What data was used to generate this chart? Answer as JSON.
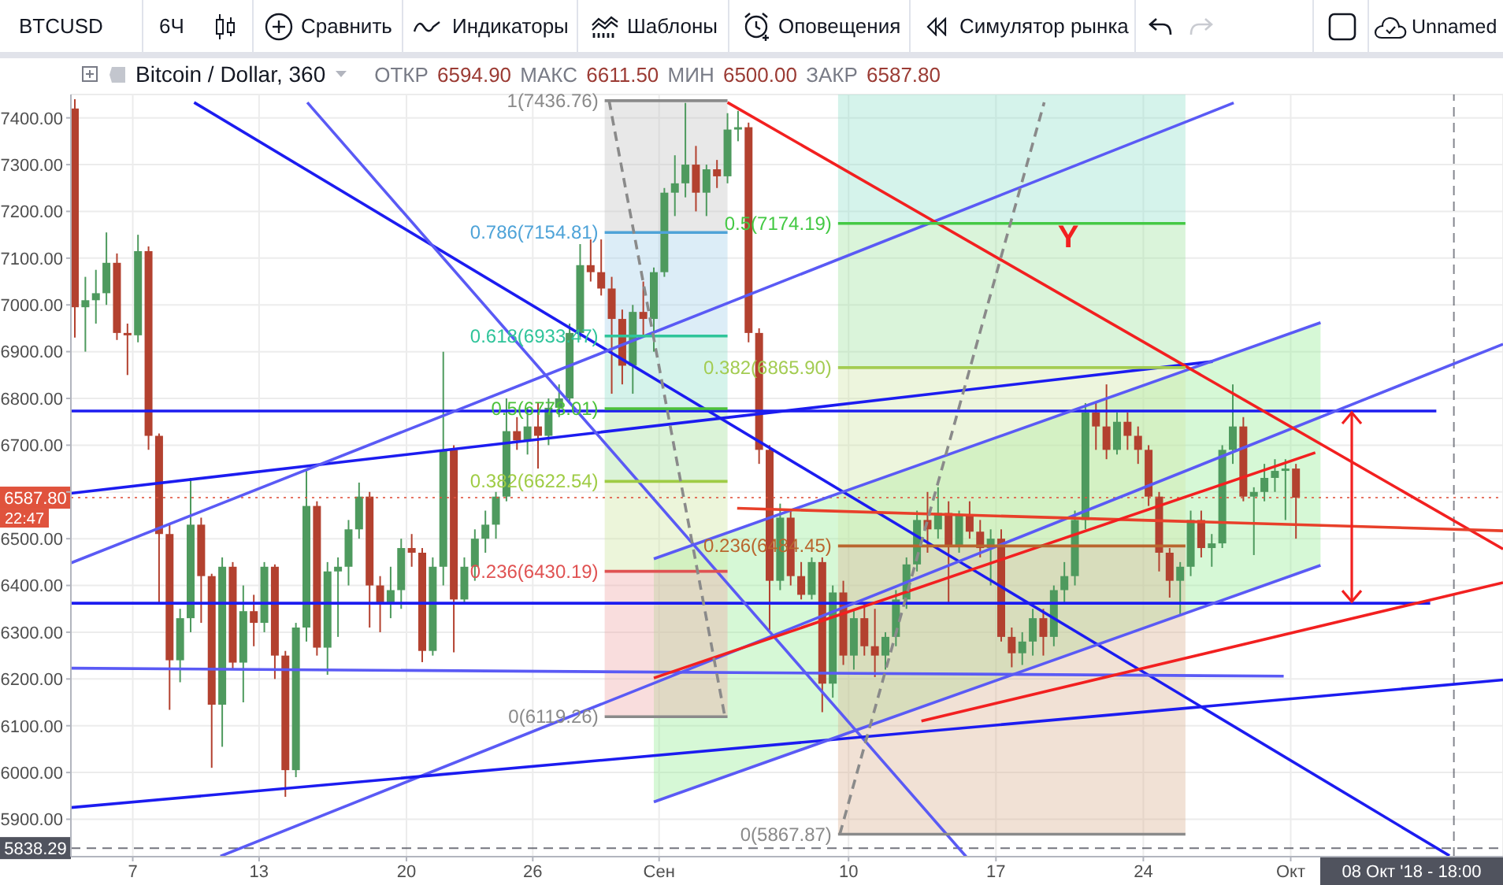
{
  "chart_data": {
    "type": "candlestick",
    "title": "Bitcoin / Dollar, 360",
    "subtitle": "ОТКР 6594.90 МАКС 6611.50 МИН 6500.00 ЗАКР 6587.80",
    "x": [
      "2018-08-04T06:00",
      "2018-08-04T18:00",
      "2018-08-05T06:00",
      "2018-08-05T18:00",
      "2018-08-06T06:00",
      "2018-08-06T18:00",
      "2018-08-07T06:00",
      "2018-08-07T18:00",
      "2018-08-08T06:00",
      "2018-08-08T18:00",
      "2018-08-09T06:00",
      "2018-08-09T18:00",
      "2018-08-10T06:00",
      "2018-08-10T18:00",
      "2018-08-11T06:00",
      "2018-08-11T18:00",
      "2018-08-12T06:00",
      "2018-08-12T18:00",
      "2018-08-13T06:00",
      "2018-08-13T18:00",
      "2018-08-14T06:00",
      "2018-08-14T18:00",
      "2018-08-15T06:00",
      "2018-08-15T18:00",
      "2018-08-16T06:00",
      "2018-08-16T18:00",
      "2018-08-17T06:00",
      "2018-08-17T18:00",
      "2018-08-18T06:00",
      "2018-08-18T18:00",
      "2018-08-19T06:00",
      "2018-08-19T18:00",
      "2018-08-20T06:00",
      "2018-08-20T18:00",
      "2018-08-21T06:00",
      "2018-08-21T18:00",
      "2018-08-22T06:00",
      "2018-08-22T18:00",
      "2018-08-23T06:00",
      "2018-08-23T18:00",
      "2018-08-24T06:00",
      "2018-08-24T18:00",
      "2018-08-25T06:00",
      "2018-08-25T18:00",
      "2018-08-26T06:00",
      "2018-08-26T18:00",
      "2018-08-27T06:00",
      "2018-08-27T18:00",
      "2018-08-28T06:00",
      "2018-08-28T18:00",
      "2018-08-29T06:00",
      "2018-08-29T18:00",
      "2018-08-30T06:00",
      "2018-08-30T18:00",
      "2018-08-31T06:00",
      "2018-08-31T18:00",
      "2018-09-01T06:00",
      "2018-09-01T18:00",
      "2018-09-02T06:00",
      "2018-09-02T18:00",
      "2018-09-03T06:00",
      "2018-09-03T18:00",
      "2018-09-04T06:00",
      "2018-09-04T18:00",
      "2018-09-05T06:00",
      "2018-09-05T18:00",
      "2018-09-06T06:00",
      "2018-09-06T18:00",
      "2018-09-07T06:00",
      "2018-09-07T18:00",
      "2018-09-08T06:00",
      "2018-09-08T18:00",
      "2018-09-09T06:00",
      "2018-09-09T18:00",
      "2018-09-10T06:00",
      "2018-09-10T18:00",
      "2018-09-11T06:00",
      "2018-09-11T18:00",
      "2018-09-12T06:00",
      "2018-09-12T18:00",
      "2018-09-13T06:00",
      "2018-09-13T18:00",
      "2018-09-14T06:00",
      "2018-09-14T18:00",
      "2018-09-15T06:00",
      "2018-09-15T18:00",
      "2018-09-16T06:00",
      "2018-09-16T18:00",
      "2018-09-17T06:00",
      "2018-09-17T18:00",
      "2018-09-18T06:00",
      "2018-09-18T18:00",
      "2018-09-19T06:00",
      "2018-09-19T18:00",
      "2018-09-20T06:00",
      "2018-09-20T18:00",
      "2018-09-21T06:00",
      "2018-09-21T18:00",
      "2018-09-22T06:00",
      "2018-09-22T18:00",
      "2018-09-23T06:00",
      "2018-09-23T18:00",
      "2018-09-24T06:00",
      "2018-09-24T18:00",
      "2018-09-25T06:00",
      "2018-09-25T18:00",
      "2018-09-26T06:00",
      "2018-09-26T18:00",
      "2018-09-27T06:00",
      "2018-09-27T18:00",
      "2018-09-28T06:00",
      "2018-09-28T18:00",
      "2018-09-29T06:00",
      "2018-09-29T18:00",
      "2018-09-30T06:00",
      "2018-09-30T18:00",
      "2018-10-01T06:00"
    ],
    "ohlc": [
      [
        7420,
        7440,
        6930,
        6995
      ],
      [
        6995,
        7060,
        6900,
        7010
      ],
      [
        7010,
        7075,
        6960,
        7025
      ],
      [
        7025,
        7155,
        7000,
        7090
      ],
      [
        7090,
        7110,
        6925,
        6940
      ],
      [
        6940,
        6960,
        6850,
        6935
      ],
      [
        6935,
        7150,
        6920,
        7115
      ],
      [
        7115,
        7125,
        6690,
        6720
      ],
      [
        6720,
        6725,
        6360,
        6510
      ],
      [
        6510,
        6530,
        6134,
        6240
      ],
      [
        6240,
        6350,
        6193,
        6330
      ],
      [
        6330,
        6630,
        6300,
        6530
      ],
      [
        6530,
        6545,
        6320,
        6420
      ],
      [
        6420,
        6425,
        6010,
        6145
      ],
      [
        6145,
        6460,
        6055,
        6440
      ],
      [
        6440,
        6450,
        6220,
        6235
      ],
      [
        6235,
        6400,
        6150,
        6345
      ],
      [
        6345,
        6380,
        6270,
        6320
      ],
      [
        6320,
        6450,
        6300,
        6440
      ],
      [
        6440,
        6445,
        6200,
        6250
      ],
      [
        6250,
        6260,
        5948,
        6005
      ],
      [
        6005,
        6320,
        5990,
        6310
      ],
      [
        6310,
        6650,
        6280,
        6570
      ],
      [
        6570,
        6580,
        6250,
        6267
      ],
      [
        6267,
        6450,
        6209,
        6430
      ],
      [
        6430,
        6460,
        6290,
        6440
      ],
      [
        6440,
        6540,
        6400,
        6520
      ],
      [
        6520,
        6620,
        6500,
        6590
      ],
      [
        6590,
        6600,
        6310,
        6400
      ],
      [
        6400,
        6420,
        6300,
        6360
      ],
      [
        6360,
        6440,
        6330,
        6390
      ],
      [
        6390,
        6500,
        6350,
        6480
      ],
      [
        6480,
        6510,
        6440,
        6470
      ],
      [
        6470,
        6480,
        6236,
        6260
      ],
      [
        6260,
        6460,
        6250,
        6440
      ],
      [
        6440,
        6900,
        6400,
        6690
      ],
      [
        6690,
        6700,
        6257,
        6370
      ],
      [
        6370,
        6460,
        6360,
        6440
      ],
      [
        6440,
        6520,
        6410,
        6500
      ],
      [
        6500,
        6560,
        6470,
        6530
      ],
      [
        6530,
        6600,
        6500,
        6590
      ],
      [
        6590,
        6800,
        6580,
        6730
      ],
      [
        6730,
        6760,
        6690,
        6710
      ],
      [
        6710,
        6780,
        6680,
        6740
      ],
      [
        6740,
        6790,
        6650,
        6720
      ],
      [
        6720,
        6800,
        6700,
        6780
      ],
      [
        6780,
        6830,
        6760,
        6800
      ],
      [
        6800,
        6960,
        6790,
        6940
      ],
      [
        6940,
        7130,
        6930,
        7085
      ],
      [
        7085,
        7140,
        7050,
        7070
      ],
      [
        7070,
        7140,
        7020,
        7035
      ],
      [
        7035,
        7060,
        6810,
        6970
      ],
      [
        6970,
        6990,
        6830,
        6870
      ],
      [
        6870,
        7000,
        6810,
        6985
      ],
      [
        6985,
        7050,
        6930,
        6970
      ],
      [
        6970,
        7080,
        6900,
        7070
      ],
      [
        7070,
        7250,
        7060,
        7240
      ],
      [
        7240,
        7320,
        7190,
        7260
      ],
      [
        7260,
        7432,
        7230,
        7300
      ],
      [
        7300,
        7340,
        7200,
        7240
      ],
      [
        7240,
        7300,
        7190,
        7290
      ],
      [
        7290,
        7310,
        7250,
        7275
      ],
      [
        7275,
        7410,
        7260,
        7375
      ],
      [
        7375,
        7415,
        7350,
        7380
      ],
      [
        7380,
        7390,
        6920,
        6940
      ],
      [
        6940,
        6950,
        6660,
        6690
      ],
      [
        6690,
        6700,
        6305,
        6410
      ],
      [
        6410,
        6575,
        6390,
        6545
      ],
      [
        6545,
        6560,
        6400,
        6420
      ],
      [
        6420,
        6450,
        6370,
        6380
      ],
      [
        6380,
        6460,
        6370,
        6450
      ],
      [
        6450,
        6460,
        6129,
        6190
      ],
      [
        6190,
        6400,
        6160,
        6385
      ],
      [
        6385,
        6410,
        6230,
        6250
      ],
      [
        6250,
        6350,
        6220,
        6330
      ],
      [
        6330,
        6360,
        6250,
        6270
      ],
      [
        6270,
        6350,
        6204,
        6250
      ],
      [
        6250,
        6300,
        6220,
        6290
      ],
      [
        6290,
        6390,
        6270,
        6370
      ],
      [
        6370,
        6460,
        6350,
        6445
      ],
      [
        6445,
        6560,
        6430,
        6540
      ],
      [
        6540,
        6600,
        6470,
        6520
      ],
      [
        6520,
        6610,
        6500,
        6555
      ],
      [
        6555,
        6580,
        6363,
        6485
      ],
      [
        6485,
        6560,
        6470,
        6550
      ],
      [
        6550,
        6580,
        6500,
        6515
      ],
      [
        6515,
        6540,
        6460,
        6480
      ],
      [
        6480,
        6520,
        6400,
        6500
      ],
      [
        6500,
        6520,
        6280,
        6290
      ],
      [
        6290,
        6310,
        6225,
        6255
      ],
      [
        6255,
        6300,
        6230,
        6280
      ],
      [
        6280,
        6350,
        6250,
        6330
      ],
      [
        6330,
        6350,
        6250,
        6290
      ],
      [
        6290,
        6400,
        6270,
        6390
      ],
      [
        6390,
        6450,
        6360,
        6420
      ],
      [
        6420,
        6560,
        6400,
        6540
      ],
      [
        6540,
        6790,
        6520,
        6770
      ],
      [
        6770,
        6790,
        6690,
        6740
      ],
      [
        6740,
        6830,
        6670,
        6690
      ],
      [
        6690,
        6770,
        6680,
        6750
      ],
      [
        6750,
        6770,
        6690,
        6720
      ],
      [
        6720,
        6740,
        6660,
        6690
      ],
      [
        6690,
        6700,
        6570,
        6590
      ],
      [
        6590,
        6600,
        6430,
        6470
      ],
      [
        6470,
        6480,
        6374,
        6410
      ],
      [
        6410,
        6450,
        6335,
        6440
      ],
      [
        6440,
        6560,
        6420,
        6540
      ],
      [
        6540,
        6560,
        6460,
        6480
      ],
      [
        6480,
        6510,
        6440,
        6490
      ],
      [
        6490,
        6700,
        6480,
        6690
      ],
      [
        6690,
        6830,
        6660,
        6740
      ],
      [
        6740,
        6760,
        6580,
        6590
      ],
      [
        6590,
        6610,
        6465,
        6600
      ],
      [
        6600,
        6660,
        6580,
        6630
      ],
      [
        6630,
        6670,
        6600,
        6645
      ],
      [
        6645,
        6670,
        6540,
        6650
      ],
      [
        6650,
        6660,
        6500,
        6587.8
      ]
    ],
    "colors": [
      "#b3412f",
      "#4e9a5e",
      "#4e9a5e",
      "#4e9a5e",
      "#b3412f",
      "#b3412f",
      "#4e9a5e",
      "#b3412f",
      "#b3412f",
      "#b3412f",
      "#4e9a5e",
      "#4e9a5e",
      "#b3412f",
      "#b3412f",
      "#4e9a5e",
      "#b3412f",
      "#4e9a5e",
      "#b3412f",
      "#4e9a5e",
      "#b3412f",
      "#b3412f",
      "#4e9a5e",
      "#4e9a5e",
      "#b3412f",
      "#4e9a5e",
      "#4e9a5e",
      "#4e9a5e",
      "#4e9a5e",
      "#b3412f",
      "#b3412f",
      "#4e9a5e",
      "#4e9a5e",
      "#b3412f",
      "#b3412f",
      "#4e9a5e",
      "#4e9a5e",
      "#b3412f",
      "#4e9a5e",
      "#4e9a5e",
      "#4e9a5e",
      "#4e9a5e",
      "#4e9a5e",
      "#b3412f",
      "#4e9a5e",
      "#b3412f",
      "#4e9a5e",
      "#4e9a5e",
      "#4e9a5e",
      "#4e9a5e",
      "#b3412f",
      "#b3412f",
      "#b3412f",
      "#b3412f",
      "#4e9a5e",
      "#b3412f",
      "#4e9a5e",
      "#4e9a5e",
      "#4e9a5e",
      "#4e9a5e",
      "#b3412f",
      "#4e9a5e",
      "#b3412f",
      "#4e9a5e",
      "#4e9a5e",
      "#b3412f",
      "#b3412f",
      "#b3412f",
      "#4e9a5e",
      "#b3412f",
      "#b3412f",
      "#4e9a5e",
      "#b3412f",
      "#4e9a5e",
      "#b3412f",
      "#4e9a5e",
      "#b3412f",
      "#b3412f",
      "#4e9a5e",
      "#4e9a5e",
      "#4e9a5e",
      "#4e9a5e",
      "#b3412f",
      "#4e9a5e",
      "#b3412f",
      "#4e9a5e",
      "#b3412f",
      "#b3412f",
      "#4e9a5e",
      "#b3412f",
      "#b3412f",
      "#4e9a5e",
      "#4e9a5e",
      "#b3412f",
      "#4e9a5e",
      "#4e9a5e",
      "#4e9a5e",
      "#4e9a5e",
      "#b3412f",
      "#b3412f",
      "#4e9a5e",
      "#b3412f",
      "#b3412f",
      "#b3412f",
      "#b3412f",
      "#b3412f",
      "#4e9a5e",
      "#4e9a5e",
      "#b3412f",
      "#4e9a5e",
      "#4e9a5e",
      "#4e9a5e",
      "#b3412f",
      "#4e9a5e",
      "#4e9a5e",
      "#4e9a5e",
      "#4e9a5e",
      "#b3412f"
    ],
    "series": [
      {
        "type": "line",
        "color": "#1c1cf0",
        "x": [
          "2018-08-04T01:30",
          "2018-10-07T22:00"
        ],
        "values": [
          6773,
          6773
        ]
      },
      {
        "type": "line",
        "color": "#1c1cf0",
        "x": [
          "2018-08-04T01:30",
          "2018-10-07T15:00"
        ],
        "values": [
          6362,
          6362
        ]
      },
      {
        "type": "line",
        "color": "#1c1cf0",
        "x": [
          "2018-08-04T01:30",
          "2018-09-27T07:00"
        ],
        "values": [
          6597,
          6879
        ]
      },
      {
        "type": "line",
        "color": "#1c1cf0",
        "x": [
          "2018-08-09T22:00",
          "2018-10-08T13:00"
        ],
        "values": [
          7433,
          5822
        ]
      },
      {
        "type": "line",
        "color": "#5a5af5",
        "x": [
          "2018-08-15T07:00",
          "2018-09-15T14:00"
        ],
        "values": [
          7433,
          5820
        ]
      },
      {
        "type": "line",
        "color": "#5a5af5",
        "x": [
          "2018-08-04T01:30",
          "2018-09-28T07:00"
        ],
        "values": [
          6448,
          7432
        ]
      },
      {
        "type": "line",
        "color": "#5a5af5",
        "x": [
          "2018-08-11T04:00",
          "2018-10-11T02:00"
        ],
        "values": [
          5821,
          6916
        ]
      },
      {
        "type": "line",
        "color": "#1c1cf0",
        "x": [
          "2018-08-04T01:30",
          "2018-10-11T02:00"
        ],
        "values": [
          5925,
          6198
        ]
      },
      {
        "type": "line",
        "color": "#5a5af5",
        "x": [
          "2018-08-04T01:30",
          "2018-09-30T16:00"
        ],
        "values": [
          6223,
          6206
        ]
      },
      {
        "type": "area",
        "color": "#33dd33",
        "x": [
          "2018-08-31T18:00",
          "2018-10-02T10:00"
        ],
        "values": [
          null,
          null
        ],
        "lower": [
          5937,
          6443
        ],
        "upper": [
          6457,
          6962
        ]
      },
      {
        "type": "line",
        "color": "#5a5af5",
        "x": [
          "2018-08-31T18:00",
          "2018-10-02T10:00"
        ],
        "values": [
          6457,
          6962
        ]
      },
      {
        "type": "line",
        "color": "#5a5af5",
        "x": [
          "2018-08-31T18:00",
          "2018-10-02T10:00"
        ],
        "values": [
          5937,
          6443
        ]
      },
      {
        "type": "line",
        "color": "#f22020",
        "x": [
          "2018-09-04T06:00",
          "2018-10-11T02:00"
        ],
        "values": [
          7433,
          6478
        ]
      },
      {
        "type": "line",
        "color": "#e8402a",
        "x": [
          "2018-09-04T17:00",
          "2018-10-11T02:00"
        ],
        "values": [
          6565,
          6517
        ]
      },
      {
        "type": "line",
        "color": "#f22020",
        "x": [
          "2018-08-31T18:00",
          "2018-10-02T04:00"
        ],
        "values": [
          6202,
          6684
        ]
      },
      {
        "type": "line",
        "color": "#f22020",
        "x": [
          "2018-09-13T11:00",
          "2018-10-11T02:00"
        ],
        "values": [
          6110,
          6406
        ]
      },
      {
        "type": "line",
        "name": "1(7436.76)",
        "color": "#8a8a8a",
        "x": [
          "2018-08-29T10:00",
          "2018-09-04T06:00"
        ],
        "values": [
          7436.76,
          7436.76
        ],
        "lower": [
          7154.81,
          7154.81
        ],
        "upper": [
          7436.76,
          7436.76
        ]
      },
      {
        "type": "line",
        "name": "0.786(7154.81)",
        "color": "#4ea3d8",
        "x": [
          "2018-08-29T10:00",
          "2018-09-04T06:00"
        ],
        "values": [
          7154.81,
          7154.81
        ],
        "lower": [
          6933.47,
          6933.47
        ],
        "upper": [
          7154.81,
          7154.81
        ]
      },
      {
        "type": "line",
        "name": "0.618(6933.47)",
        "color": "#2fc49a",
        "x": [
          "2018-08-29T10:00",
          "2018-09-04T06:00"
        ],
        "values": [
          6933.47,
          6933.47
        ],
        "lower": [
          6778.01,
          6778.01
        ],
        "upper": [
          6933.47,
          6933.47
        ]
      },
      {
        "type": "line",
        "name": "0.5(6778.01)",
        "color": "#4cc23a",
        "x": [
          "2018-08-29T10:00",
          "2018-09-04T06:00"
        ],
        "values": [
          6778.01,
          6778.01
        ],
        "lower": [
          6622.54,
          6622.54
        ],
        "upper": [
          6778.01,
          6778.01
        ]
      },
      {
        "type": "line",
        "name": "0.382(6622.54)",
        "color": "#9fcc45",
        "x": [
          "2018-08-29T10:00",
          "2018-09-04T06:00"
        ],
        "values": [
          6622.54,
          6622.54
        ],
        "lower": [
          6430.19,
          6430.19
        ],
        "upper": [
          6622.54,
          6622.54
        ]
      },
      {
        "type": "line",
        "name": "0.236(6430.19)",
        "color": "#e05252",
        "x": [
          "2018-08-29T10:00",
          "2018-09-04T06:00"
        ],
        "values": [
          6430.19,
          6430.19
        ],
        "lower": [
          6119.26,
          6119.26
        ],
        "upper": [
          6430.19,
          6430.19
        ]
      },
      {
        "type": "line",
        "name": "0(6119.26)",
        "color": "#8a8a8a",
        "x": [
          "2018-08-29T10:00",
          "2018-09-04T06:00"
        ],
        "values": [
          6119.26,
          6119.26
        ]
      },
      {
        "type": "line",
        "color": "#8a8a8a",
        "line_style": "dashed",
        "x": [
          "2018-08-29T15:00",
          "2018-09-04T03:00"
        ],
        "values": [
          7436.76,
          6119.26
        ]
      },
      {
        "type": "line",
        "color": "#2fc49a",
        "x": [
          "2018-09-09T12:00",
          "2018-09-26T00:00"
        ],
        "values": [
          null,
          null
        ],
        "lower": [
          7174.19,
          7174.19
        ],
        "upper": [
          7450,
          7450
        ]
      },
      {
        "type": "line",
        "name": "0.5(7174.19)",
        "color": "#44c944",
        "x": [
          "2018-09-09T12:00",
          "2018-09-26T00:00"
        ],
        "values": [
          7174.19,
          7174.19
        ],
        "lower": [
          6865.9,
          6865.9
        ],
        "upper": [
          7174.19,
          7174.19
        ]
      },
      {
        "type": "line",
        "name": "0.382(6865.90)",
        "color": "#a3cc52",
        "x": [
          "2018-09-09T12:00",
          "2018-09-26T00:00"
        ],
        "values": [
          6865.9,
          6865.9
        ],
        "lower": [
          6484.45,
          6484.45
        ],
        "upper": [
          6865.9,
          6865.9
        ]
      },
      {
        "type": "line",
        "name": "0.236(6484.45)",
        "color": "#b9662e",
        "x": [
          "2018-09-09T12:00",
          "2018-09-26T00:00"
        ],
        "values": [
          6484.45,
          6484.45
        ],
        "lower": [
          5867.87,
          5867.87
        ],
        "upper": [
          6484.45,
          6484.45
        ]
      },
      {
        "type": "line",
        "name": "0(5867.87)",
        "color": "#8a8a8a",
        "x": [
          "2018-09-09T12:00",
          "2018-09-26T00:00"
        ],
        "values": [
          5867.87,
          5867.87
        ]
      },
      {
        "type": "line",
        "color": "#8a8a8a",
        "line_style": "dashed",
        "x": [
          "2018-09-09T14:00",
          "2018-09-19T07:00"
        ],
        "values": [
          5867.87,
          7433
        ]
      }
    ],
    "xlim": [
      "2018-08-04T01:30",
      "2018-10-11T02:00"
    ],
    "xticks": [
      {
        "value": "2018-08-07",
        "label": "7"
      },
      {
        "value": "2018-08-13",
        "label": "13"
      },
      {
        "value": "2018-08-20",
        "label": "20"
      },
      {
        "value": "2018-08-26",
        "label": "26"
      },
      {
        "value": "2018-09-01",
        "label": "Сен"
      },
      {
        "value": "2018-09-10",
        "label": "10"
      },
      {
        "value": "2018-09-17",
        "label": "17"
      },
      {
        "value": "2018-09-24",
        "label": "24"
      },
      {
        "value": "2018-10-01",
        "label": "Окт"
      }
    ],
    "ylim": [
      5820,
      7450
    ],
    "yticks": [
      {
        "value": 5900,
        "label": "5900.00"
      },
      {
        "value": 6000,
        "label": "6000.00"
      },
      {
        "value": 6100,
        "label": "6100.00"
      },
      {
        "value": 6200,
        "label": "6200.00"
      },
      {
        "value": 6300,
        "label": "6300.00"
      },
      {
        "value": 6400,
        "label": "6400.00"
      },
      {
        "value": 6500,
        "label": "6500.00"
      },
      {
        "value": 6600,
        "label": null
      },
      {
        "value": 6700,
        "label": "6700.00"
      },
      {
        "value": 6800,
        "label": "6800.00"
      },
      {
        "value": 6900,
        "label": "6900.00"
      },
      {
        "value": 7000,
        "label": "7000.00"
      },
      {
        "value": 7100,
        "label": "7100.00"
      },
      {
        "value": 7200,
        "label": "7200.00"
      },
      {
        "value": 7300,
        "label": "7300.00"
      },
      {
        "value": 7400,
        "label": "7400.00"
      }
    ],
    "ref_lines": [
      {
        "axis": "y",
        "value": 6587.8,
        "label": "6587.80",
        "color": "#e0533d",
        "line_style": "dotted"
      },
      {
        "axis": "y",
        "value": 5838.29,
        "label": "5838.29",
        "color": "#50535e",
        "line_style": "dashed"
      },
      {
        "axis": "x",
        "value": "2018-10-08T18:00",
        "label": "08 Окт '18 - 18:00",
        "color": "#50535e",
        "line_style": "dashed"
      }
    ],
    "annotations": [
      "BTCUSD",
      "6Ч",
      "Сравнить",
      "Индикаторы",
      "Шаблоны",
      "Оповещения",
      "Симулятор рынка",
      "Unnamed",
      "22:47",
      "Y"
    ],
    "grid": true
  }
}
